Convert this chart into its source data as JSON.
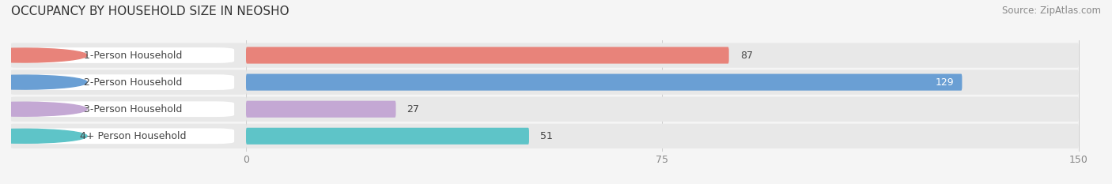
{
  "title": "OCCUPANCY BY HOUSEHOLD SIZE IN NEOSHO",
  "source": "Source: ZipAtlas.com",
  "categories": [
    "1-Person Household",
    "2-Person Household",
    "3-Person Household",
    "4+ Person Household"
  ],
  "values": [
    87,
    129,
    27,
    51
  ],
  "bar_colors": [
    "#E8837A",
    "#6A9FD4",
    "#C4A8D4",
    "#5EC4C8"
  ],
  "value_inside": [
    false,
    true,
    false,
    false
  ],
  "track_color": "#E8E8E8",
  "background_color": "#f5f5f5",
  "xlim": [
    0,
    150
  ],
  "xticks": [
    0,
    75,
    150
  ],
  "bar_height": 0.62,
  "title_fontsize": 11,
  "label_fontsize": 9,
  "value_fontsize": 9,
  "source_fontsize": 8.5,
  "label_box_color": "white",
  "label_text_color": "#444444",
  "value_text_color_outside": "#444444",
  "value_text_color_inside": "white",
  "grid_color": "#cccccc",
  "tick_color": "#888888",
  "row_bg_colors": [
    "#eeeeee",
    "#e8e8e8"
  ]
}
